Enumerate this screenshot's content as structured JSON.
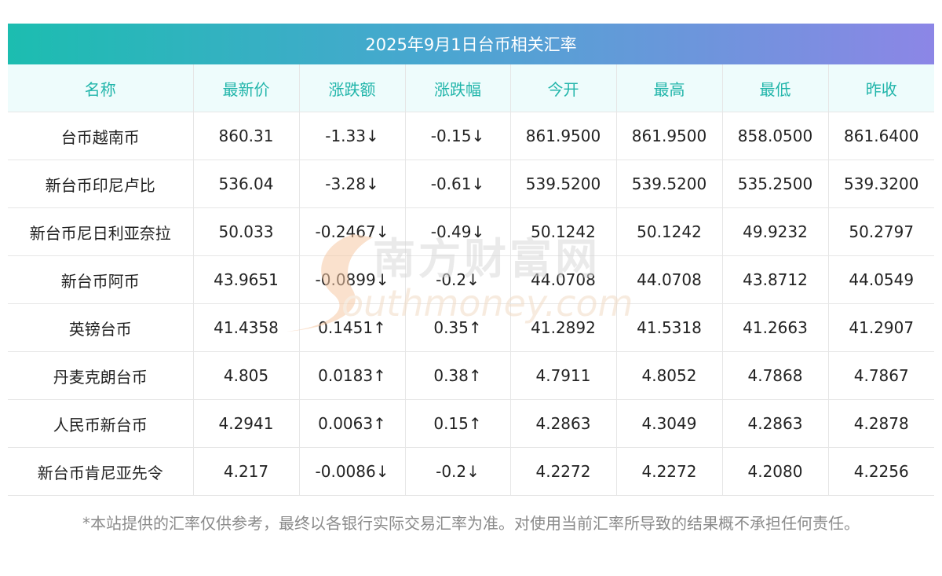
{
  "title": "2025年9月1日台币相关汇率",
  "columns": [
    "名称",
    "最新价",
    "涨跌额",
    "涨跌幅",
    "今开",
    "最高",
    "最低",
    "昨收"
  ],
  "rows": [
    {
      "name": "台币越南币",
      "latest": "860.31",
      "change": "-1.33↓",
      "pct": "-0.15↓",
      "open": "861.9500",
      "high": "861.9500",
      "low": "858.0500",
      "prev": "861.6400",
      "trend": "down"
    },
    {
      "name": "新台币印尼卢比",
      "latest": "536.04",
      "change": "-3.28↓",
      "pct": "-0.61↓",
      "open": "539.5200",
      "high": "539.5200",
      "low": "535.2500",
      "prev": "539.3200",
      "trend": "down"
    },
    {
      "name": "新台币尼日利亚奈拉",
      "latest": "50.033",
      "change": "-0.2467↓",
      "pct": "-0.49↓",
      "open": "50.1242",
      "high": "50.1242",
      "low": "49.9232",
      "prev": "50.2797",
      "trend": "down"
    },
    {
      "name": "新台币阿币",
      "latest": "43.9651",
      "change": "-0.0899↓",
      "pct": "-0.2↓",
      "open": "44.0708",
      "high": "44.0708",
      "low": "43.8712",
      "prev": "44.0549",
      "trend": "down"
    },
    {
      "name": "英镑台币",
      "latest": "41.4358",
      "change": "0.1451↑",
      "pct": "0.35↑",
      "open": "41.2892",
      "high": "41.5318",
      "low": "41.2663",
      "prev": "41.2907",
      "trend": "up"
    },
    {
      "name": "丹麦克朗台币",
      "latest": "4.805",
      "change": "0.0183↑",
      "pct": "0.38↑",
      "open": "4.7911",
      "high": "4.8052",
      "low": "4.7868",
      "prev": "4.7867",
      "trend": "up"
    },
    {
      "name": "人民币新台币",
      "latest": "4.2941",
      "change": "0.0063↑",
      "pct": "0.15↑",
      "open": "4.2863",
      "high": "4.3049",
      "low": "4.2863",
      "prev": "4.2878",
      "trend": "up"
    },
    {
      "name": "新台币肯尼亚先令",
      "latest": "4.217",
      "change": "-0.0086↓",
      "pct": "-0.2↓",
      "open": "4.2272",
      "high": "4.2272",
      "low": "4.2080",
      "prev": "4.2256",
      "trend": "down"
    }
  ],
  "watermark": {
    "cn": "南方财富网",
    "en": "outhmoney.com"
  },
  "footnote": "*本站提供的汇率仅供参考，最终以各银行实际交易汇率为准。对使用当前汇率所导致的结果概不承担任何责任。",
  "colors": {
    "up": "#ec1c1c",
    "down": "#178a17",
    "header_text": "#21b5aa",
    "header_bg": "#eefcfc"
  }
}
